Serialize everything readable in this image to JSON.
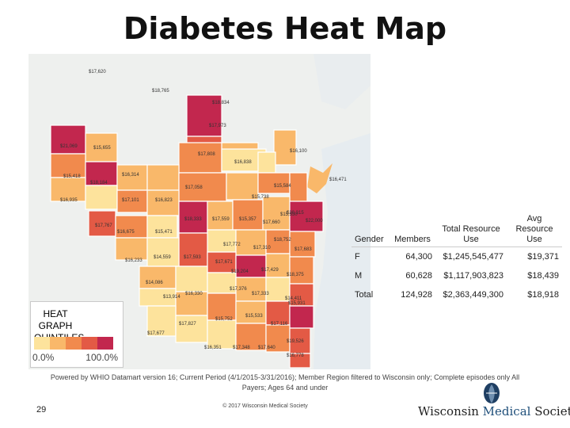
{
  "title": "Diabetes Heat Map",
  "legend": {
    "title": "HEAT GRAPH QUINTILES",
    "low": "0.0%",
    "high": "100.0%",
    "colors": [
      "#fde39c",
      "#f9b86a",
      "#f18a4d",
      "#e35a45",
      "#c2274e"
    ]
  },
  "map_labels": [
    "$17,620",
    "$18,765",
    "$18,834",
    "$17,973",
    "$21,069",
    "$15,655",
    "$17,808",
    "$16,100",
    "$16,838",
    "$15,418",
    "$18,184",
    "$16,314",
    "$15,584",
    "$16,471",
    "$16,935",
    "$17,101",
    "$16,823",
    "$17,058",
    "$15,738",
    "$18,333",
    "$17,660",
    "$22,000",
    "$17,559",
    "$15,357",
    "$15,330",
    "$20,315",
    "$17,767",
    "$16,675",
    "$15,471",
    "$18,752",
    "$17,772",
    "$17,310",
    "$17,683",
    "$16,233",
    "$14,559",
    "$17,593",
    "$17,671",
    "$19,204",
    "$17,429",
    "$18,375",
    "$14,086",
    "$17,376",
    "$13,914",
    "$16,330",
    "$17,333",
    "$15,931",
    "$14,411",
    "$17,827",
    "$15,752",
    "$15,533",
    "$17,116",
    "$17,677",
    "$16,351",
    "$17,348",
    "$17,640",
    "$19,526",
    "$16,778"
  ],
  "table": {
    "headers": [
      "Gender",
      "Members",
      "Total Resource Use",
      "Avg Resource Use"
    ],
    "rows": [
      [
        "F",
        "64,300",
        "$1,245,545,477",
        "$19,371"
      ],
      [
        "M",
        "60,628",
        "$1,117,903,823",
        "$18,439"
      ],
      [
        "Total",
        "124,928",
        "$2,363,449,300",
        "$18,918"
      ]
    ]
  },
  "footnote": "Powered by WHIO Datamart version 16; Current Period (4/1/2015-3/31/2016); Member Region filtered to Wisconsin only; Complete episodes only All Payers; Ages 64 and under",
  "page_number": "29",
  "copyright": "© 2017 Wisconsin Medical Society",
  "logo": {
    "part1": "Wisconsin ",
    "part2": "Medical",
    "part3": " Society"
  }
}
